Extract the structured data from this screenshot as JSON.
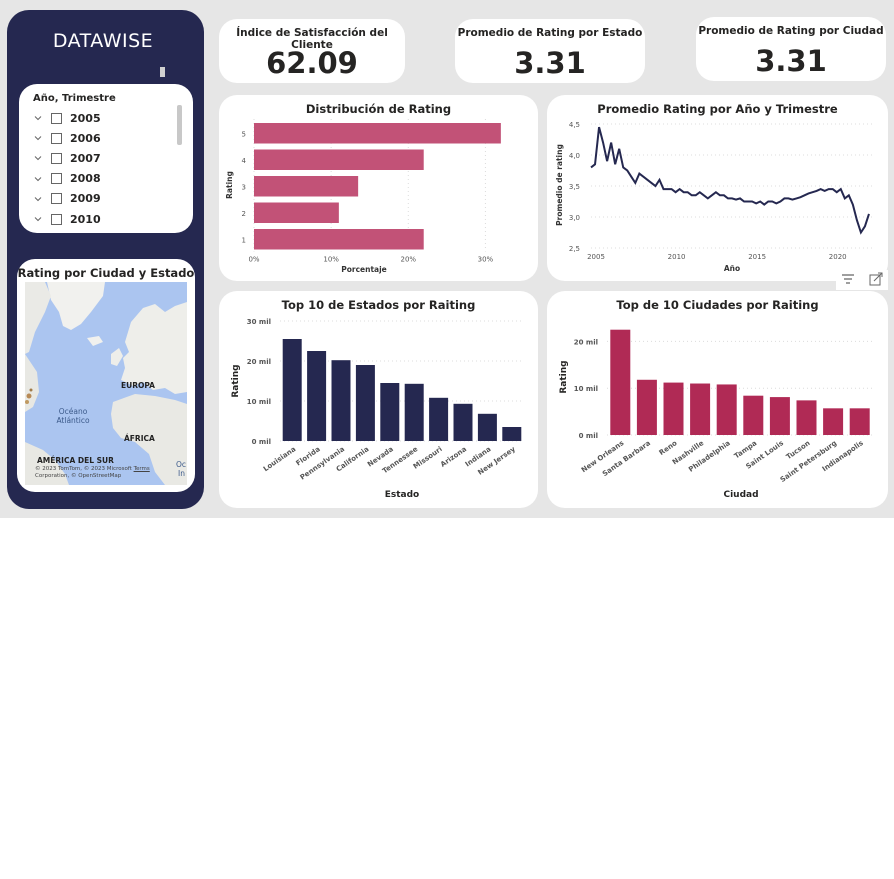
{
  "brand": "DATAWISE",
  "slicer": {
    "title": "Año, Trimestre",
    "items": [
      {
        "label": "2005"
      },
      {
        "label": "2006"
      },
      {
        "label": "2007"
      },
      {
        "label": "2008"
      },
      {
        "label": "2009"
      },
      {
        "label": "2010"
      }
    ]
  },
  "map": {
    "title": "Rating por Ciudad y Estado",
    "labels": {
      "europe": "EUROPA",
      "africa": "ÁFRICA",
      "south_america": "AMÉRICA DEL SUR",
      "ocean_line1": "Océano",
      "ocean_line2": "Atlántico",
      "edge1": "Oc",
      "edge2": "In"
    },
    "copyright_line1": "© 2023 TomTom, © 2023 Microsoft",
    "copyright_terms": "Terms",
    "copyright_line2": "Corporation, © OpenStreetMap"
  },
  "kpis": [
    {
      "title": "Índice de Satisfacción del Cliente",
      "value": "62.09"
    },
    {
      "title": "Promedio de Rating por Estado",
      "value": "3.31"
    },
    {
      "title": "Promedio de Rating por Ciudad",
      "value": "3.31"
    }
  ],
  "colors": {
    "navy": "#252850",
    "rating_bar": "#c25277",
    "city_bar": "#b02a55",
    "line": "#252850"
  },
  "chart_data": [
    {
      "id": "dist",
      "type": "bar",
      "orientation": "horizontal",
      "title": "Distribución de Rating",
      "xlabel": "Porcentaje",
      "ylabel": "Rating",
      "categories": [
        "5",
        "4",
        "3",
        "2",
        "1"
      ],
      "values": [
        32,
        22,
        13.5,
        11,
        22
      ],
      "xlim": [
        0,
        35
      ],
      "xticks": [
        "0%",
        "10%",
        "20%",
        "30%"
      ]
    },
    {
      "id": "trend",
      "type": "line",
      "title": "Promedio Rating por Año y Trimestre",
      "xlabel": "Año",
      "ylabel": "Promedio de rating",
      "xlim": [
        2005,
        2022.5
      ],
      "ylim": [
        2.5,
        4.5
      ],
      "xticks": [
        "2005",
        "2010",
        "2015",
        "2020"
      ],
      "yticks": [
        "4,5",
        "4,0",
        "3,5",
        "3,0",
        "2,5"
      ],
      "x": [
        2005.0,
        2005.25,
        2005.5,
        2005.75,
        2006.0,
        2006.25,
        2006.5,
        2006.75,
        2007.0,
        2007.25,
        2007.5,
        2007.75,
        2008.0,
        2008.25,
        2008.5,
        2008.75,
        2009.0,
        2009.25,
        2009.5,
        2009.75,
        2010.0,
        2010.25,
        2010.5,
        2010.75,
        2011.0,
        2011.25,
        2011.5,
        2011.75,
        2012.0,
        2012.25,
        2012.5,
        2012.75,
        2013.0,
        2013.25,
        2013.5,
        2013.75,
        2014.0,
        2014.25,
        2014.5,
        2014.75,
        2015.0,
        2015.25,
        2015.5,
        2015.75,
        2016.0,
        2016.25,
        2016.5,
        2016.75,
        2017.0,
        2017.25,
        2017.5,
        2017.75,
        2018.0,
        2018.25,
        2018.5,
        2018.75,
        2019.0,
        2019.25,
        2019.5,
        2019.75,
        2020.0,
        2020.25,
        2020.5,
        2020.75,
        2021.0,
        2021.25,
        2021.5,
        2021.75,
        2022.0,
        2022.25
      ],
      "values": [
        3.8,
        3.85,
        4.45,
        4.2,
        3.9,
        4.2,
        3.85,
        4.1,
        3.8,
        3.75,
        3.65,
        3.55,
        3.7,
        3.65,
        3.6,
        3.55,
        3.5,
        3.6,
        3.45,
        3.45,
        3.45,
        3.4,
        3.45,
        3.4,
        3.4,
        3.35,
        3.35,
        3.4,
        3.35,
        3.3,
        3.35,
        3.4,
        3.35,
        3.35,
        3.3,
        3.3,
        3.28,
        3.3,
        3.25,
        3.25,
        3.25,
        3.22,
        3.25,
        3.2,
        3.25,
        3.25,
        3.22,
        3.25,
        3.3,
        3.3,
        3.28,
        3.3,
        3.32,
        3.35,
        3.38,
        3.4,
        3.42,
        3.45,
        3.42,
        3.45,
        3.45,
        3.4,
        3.45,
        3.3,
        3.35,
        3.2,
        2.95,
        2.75,
        2.85,
        3.05
      ]
    },
    {
      "id": "states",
      "type": "bar",
      "title": "Top 10 de Estados por Raiting",
      "xlabel": "Estado",
      "ylabel": "Rating",
      "categories": [
        "Louisiana",
        "Florida",
        "Pennsylvania",
        "California",
        "Nevada",
        "Tennessee",
        "Missouri",
        "Arizona",
        "Indiana",
        "New Jersey"
      ],
      "values": [
        25500,
        22500,
        20200,
        19000,
        14500,
        14300,
        10800,
        9300,
        6800,
        3500
      ],
      "ylim": [
        0,
        30000
      ],
      "yticks": [
        "0 mil",
        "10 mil",
        "20 mil",
        "30 mil"
      ]
    },
    {
      "id": "cities",
      "type": "bar",
      "title": "Top de 10 Ciudades por Raiting",
      "xlabel": "Ciudad",
      "ylabel": "Rating",
      "categories": [
        "New Orleans",
        "Santa Barbara",
        "Reno",
        "Nashville",
        "Philadelphia",
        "Tampa",
        "Saint Louis",
        "Tucson",
        "Saint Petersburg",
        "Indianapolis"
      ],
      "values": [
        22500,
        11800,
        11200,
        11000,
        10800,
        8400,
        8100,
        7400,
        5700,
        5700
      ],
      "ylim": [
        0,
        25000
      ],
      "yticks": [
        "0 mil",
        "10 mil",
        "20 mil"
      ]
    }
  ]
}
